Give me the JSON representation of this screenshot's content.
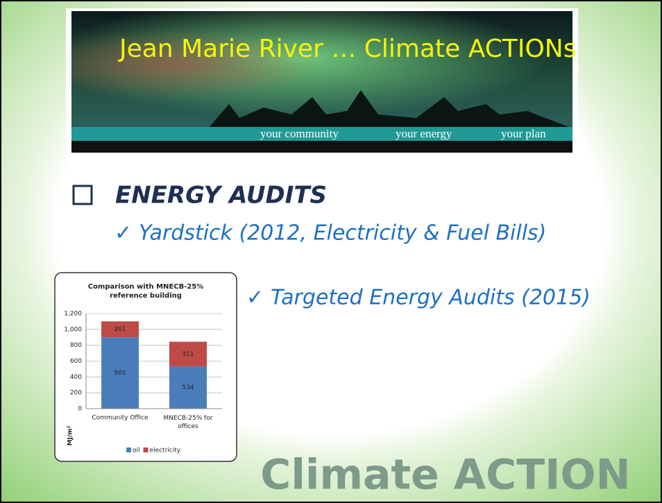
{
  "slide": {
    "banner_title": "Jean Marie River … Climate ACTIONs",
    "taglines": [
      "your community",
      "your energy",
      "your plan"
    ],
    "heading": "ENERGY AUDITS",
    "bullets": [
      "Yardstick (2012, Electricity & Fuel Bills)",
      "Targeted Energy Audits (2015)"
    ],
    "footer": "Climate ACTION"
  },
  "chart_data": {
    "type": "stacked-bar",
    "title": "Comparison with MNECB-25% reference building",
    "y_label": "MJ/m²",
    "categories": [
      "Community Office",
      "MNECB-25% for offices"
    ],
    "series": [
      {
        "name": "oil",
        "color": "#4a7ebb",
        "values": [
          901,
          534
        ]
      },
      {
        "name": "electricity",
        "color": "#be4b48",
        "values": [
          201,
          311
        ]
      }
    ],
    "ylim": [
      0,
      1200
    ],
    "yticks": [
      0,
      200,
      400,
      600,
      800,
      {
        "value": 1000,
        "label": "1,000"
      },
      {
        "value": 1200,
        "label": "1,200"
      }
    ],
    "grid": true
  }
}
